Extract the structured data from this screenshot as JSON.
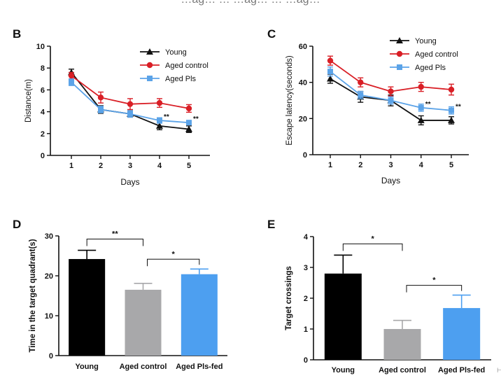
{
  "top_residual": "…ag… … …ag… … …ag…",
  "chart_data": [
    {
      "panel": "B",
      "type": "line",
      "xlabel": "Days",
      "ylabel": "Distance(m)",
      "categories": [
        "1",
        "2",
        "3",
        "4",
        "5"
      ],
      "ylim": [
        0,
        10
      ],
      "yticks": [
        "0",
        "2",
        "4",
        "6",
        "8",
        "10"
      ],
      "legend_position": "top-right",
      "series": [
        {
          "name": "Young",
          "color": "#111111",
          "marker": "triangle",
          "values": [
            7.6,
            4.2,
            3.8,
            2.7,
            2.4
          ],
          "errors": [
            0.3,
            0.35,
            0.3,
            0.35,
            0.3
          ]
        },
        {
          "name": "Aged control",
          "color": "#d91f26",
          "marker": "circle",
          "values": [
            7.3,
            5.3,
            4.7,
            4.8,
            4.3
          ],
          "errors": [
            0.3,
            0.5,
            0.5,
            0.4,
            0.35
          ]
        },
        {
          "name": "Aged Pls",
          "color": "#5ba3e8",
          "marker": "square",
          "values": [
            6.7,
            4.2,
            3.8,
            3.2,
            3.0
          ],
          "errors": [
            0.3,
            0.3,
            0.3,
            0.25,
            0.2
          ]
        }
      ],
      "annotations": [
        {
          "text": "**",
          "x": "4"
        },
        {
          "text": "**",
          "x": "5"
        }
      ]
    },
    {
      "panel": "C",
      "type": "line",
      "xlabel": "Days",
      "ylabel": "Escape latency(seconds)",
      "categories": [
        "1",
        "2",
        "3",
        "4",
        "5"
      ],
      "ylim": [
        0,
        60
      ],
      "yticks": [
        "0",
        "20",
        "40",
        "60"
      ],
      "legend_position": "top-right",
      "series": [
        {
          "name": "Young",
          "color": "#111111",
          "marker": "triangle",
          "values": [
            42,
            32,
            30,
            19,
            19
          ],
          "errors": [
            2.5,
            3,
            3,
            2.5,
            2
          ]
        },
        {
          "name": "Aged control",
          "color": "#d91f26",
          "marker": "circle",
          "values": [
            52,
            40,
            35,
            37.5,
            36
          ],
          "errors": [
            2.5,
            2.5,
            2.5,
            2.5,
            3
          ]
        },
        {
          "name": "Aged Pls",
          "color": "#5ba3e8",
          "marker": "square",
          "values": [
            46,
            33,
            30,
            26,
            24.5
          ],
          "errors": [
            2.5,
            2,
            2,
            2,
            2
          ]
        }
      ],
      "annotations": [
        {
          "text": "**",
          "x": "4"
        },
        {
          "text": "**",
          "x": "5"
        }
      ]
    },
    {
      "panel": "D",
      "type": "bar",
      "ylabel": "Time in the target quadrant(s)",
      "categories": [
        "Young",
        "Aged control",
        "Aged Pls-fed"
      ],
      "values": [
        24.2,
        16.5,
        20.4
      ],
      "errors": [
        2.2,
        1.6,
        1.3
      ],
      "colors": [
        "#000000",
        "#a8a8aa",
        "#4d9ff0"
      ],
      "ylim": [
        0,
        30
      ],
      "yticks": [
        "0",
        "10",
        "20",
        "30"
      ],
      "brackets": [
        {
          "from": 0,
          "to": 1,
          "text": "**"
        },
        {
          "from": 1,
          "to": 2,
          "text": "*"
        }
      ]
    },
    {
      "panel": "E",
      "type": "bar",
      "ylabel": "Target crossings",
      "categories": [
        "Young",
        "Aged control",
        "Aged Pls-fed"
      ],
      "values": [
        2.8,
        1.0,
        1.68
      ],
      "errors": [
        0.6,
        0.28,
        0.42
      ],
      "colors": [
        "#000000",
        "#a8a8aa",
        "#4d9ff0"
      ],
      "ylim": [
        0,
        4
      ],
      "yticks": [
        "0",
        "1",
        "2",
        "3",
        "4"
      ],
      "brackets": [
        {
          "from": 0,
          "to": 1,
          "text": "*"
        },
        {
          "from": 1,
          "to": 2,
          "text": "*"
        }
      ]
    }
  ]
}
